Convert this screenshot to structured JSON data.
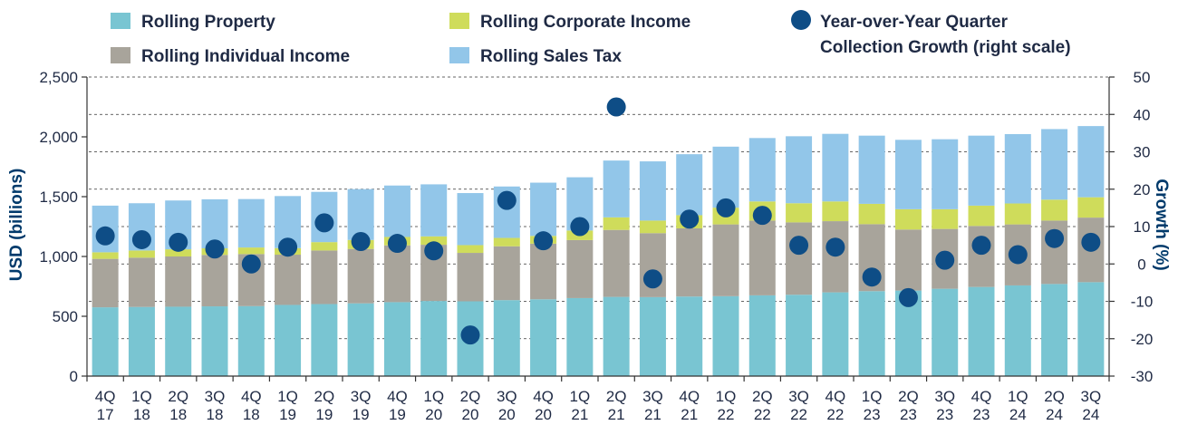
{
  "chart_data": {
    "type": "bar",
    "stacked": true,
    "categories": [
      [
        "4Q",
        "17"
      ],
      [
        "1Q",
        "18"
      ],
      [
        "2Q",
        "18"
      ],
      [
        "3Q",
        "18"
      ],
      [
        "4Q",
        "18"
      ],
      [
        "1Q",
        "19"
      ],
      [
        "2Q",
        "19"
      ],
      [
        "3Q",
        "19"
      ],
      [
        "4Q",
        "19"
      ],
      [
        "1Q",
        "20"
      ],
      [
        "2Q",
        "20"
      ],
      [
        "3Q",
        "20"
      ],
      [
        "4Q",
        "20"
      ],
      [
        "1Q",
        "21"
      ],
      [
        "2Q",
        "21"
      ],
      [
        "3Q",
        "21"
      ],
      [
        "4Q",
        "21"
      ],
      [
        "1Q",
        "22"
      ],
      [
        "2Q",
        "22"
      ],
      [
        "3Q",
        "22"
      ],
      [
        "4Q",
        "22"
      ],
      [
        "1Q",
        "23"
      ],
      [
        "2Q",
        "23"
      ],
      [
        "3Q",
        "23"
      ],
      [
        "4Q",
        "23"
      ],
      [
        "1Q",
        "24"
      ],
      [
        "2Q",
        "24"
      ],
      [
        "3Q",
        "24"
      ]
    ],
    "series": [
      {
        "name": "Rolling Property",
        "color": "#79c5d2",
        "values": [
          575,
          578,
          580,
          583,
          585,
          595,
          602,
          608,
          618,
          628,
          625,
          635,
          642,
          652,
          662,
          660,
          665,
          668,
          675,
          680,
          700,
          710,
          715,
          730,
          745,
          758,
          770,
          785
        ]
      },
      {
        "name": "Rolling Individual Income",
        "color": "#a8a49b",
        "values": [
          405,
          412,
          420,
          430,
          435,
          420,
          448,
          455,
          475,
          470,
          405,
          450,
          465,
          485,
          560,
          535,
          570,
          600,
          625,
          605,
          595,
          560,
          510,
          500,
          510,
          510,
          530,
          540
        ]
      },
      {
        "name": "Rolling Corporate Income",
        "color": "#cfdc5b",
        "values": [
          55,
          60,
          60,
          55,
          55,
          55,
          70,
          75,
          70,
          70,
          65,
          70,
          65,
          80,
          105,
          105,
          110,
          140,
          160,
          160,
          165,
          170,
          170,
          165,
          170,
          175,
          175,
          170
        ]
      },
      {
        "name": "Rolling Sales Tax",
        "color": "#92c6e9",
        "values": [
          390,
          395,
          408,
          410,
          405,
          435,
          420,
          425,
          430,
          435,
          435,
          430,
          445,
          445,
          475,
          495,
          510,
          510,
          530,
          560,
          565,
          570,
          580,
          585,
          585,
          580,
          590,
          595
        ]
      }
    ],
    "growth": {
      "name": "Year-over-Year Quarter Collection Growth (right scale)",
      "legend_lines": [
        "Year-over-Year Quarter",
        "Collection Growth (right scale)"
      ],
      "color": "#0e4d86",
      "values": [
        7.5,
        6.5,
        5.8,
        4,
        0,
        4.5,
        11,
        6,
        5.5,
        3.5,
        -19,
        17,
        6.2,
        10,
        42,
        -4,
        12,
        15,
        13,
        5,
        4.5,
        -3.5,
        -9,
        1,
        5,
        2.5,
        6.8,
        5.8
      ]
    },
    "legend_order": [
      0,
      2,
      -1,
      1,
      3
    ],
    "left_axis": {
      "title": "USD (billions)",
      "ylim": [
        0,
        2500
      ],
      "ticks": [
        0,
        500,
        1000,
        1500,
        2000,
        2500
      ],
      "tick_labels": [
        "0",
        "500",
        "1,000",
        "1,500",
        "2,000",
        "2,500"
      ]
    },
    "right_axis": {
      "title": "Growth (%)",
      "ylim": [
        -30,
        50
      ],
      "ticks": [
        -30,
        -20,
        -10,
        0,
        10,
        20,
        30,
        40,
        50
      ],
      "tick_labels": [
        "-30",
        "-20",
        "-10",
        "0",
        "10",
        "20",
        "30",
        "40",
        "50"
      ]
    }
  }
}
